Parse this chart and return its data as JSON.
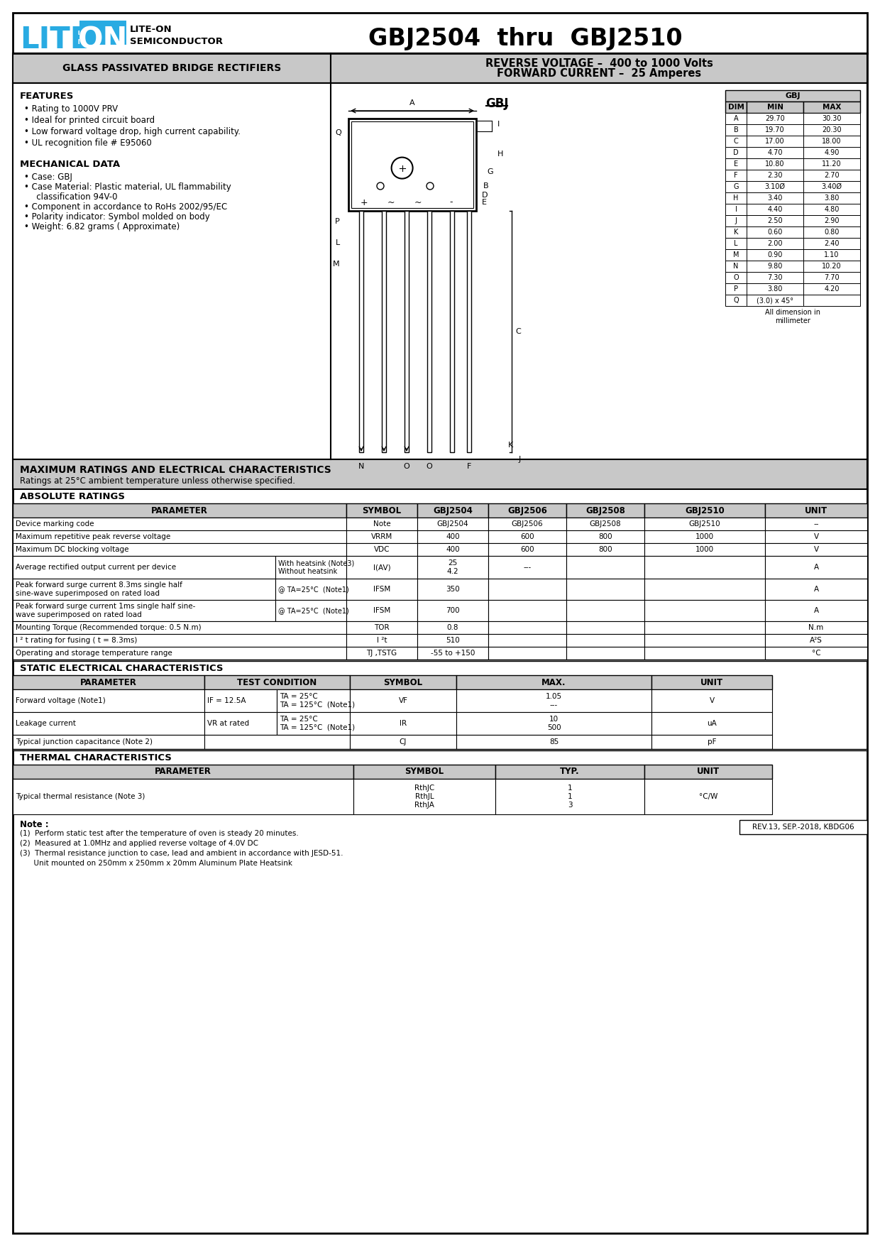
{
  "title": "GBJ2504  thru  GBJ2510",
  "company_sub1": "LITE-ON",
  "company_sub2": "SEMICONDUCTOR",
  "product_line": "GLASS PASSIVATED BRIDGE RECTIFIERS",
  "reverse_voltage": "REVERSE VOLTAGE –  400 to 1000 Volts",
  "forward_current": "FORWARD CURRENT –  25 Amperes",
  "features": [
    "Rating to 1000V PRV",
    "Ideal for printed circuit board",
    "Low forward voltage drop, high current capability.",
    "UL recognition file # E95060"
  ],
  "mech": [
    "Case: GBJ",
    "Case Material: Plastic material, UL flammability\n   classification 94V-0",
    "Component in accordance to RoHs 2002/95/EC",
    "Polarity indicator: Symbol molded on body",
    "Weight: 6.82 grams ( Approximate)"
  ],
  "dim_table_header": [
    "DIM",
    "MIN",
    "MAX"
  ],
  "dim_table_data": [
    [
      "A",
      "29.70",
      "30.30"
    ],
    [
      "B",
      "19.70",
      "20.30"
    ],
    [
      "C",
      "17.00",
      "18.00"
    ],
    [
      "D",
      "4.70",
      "4.90"
    ],
    [
      "E",
      "10.80",
      "11.20"
    ],
    [
      "F",
      "2.30",
      "2.70"
    ],
    [
      "G",
      "3.10Ø",
      "3.40Ø"
    ],
    [
      "H",
      "3.40",
      "3.80"
    ],
    [
      "I",
      "4.40",
      "4.80"
    ],
    [
      "J",
      "2.50",
      "2.90"
    ],
    [
      "K",
      "0.60",
      "0.80"
    ],
    [
      "L",
      "2.00",
      "2.40"
    ],
    [
      "M",
      "0.90",
      "1.10"
    ],
    [
      "N",
      "9.80",
      "10.20"
    ],
    [
      "O",
      "7.30",
      "7.70"
    ],
    [
      "P",
      "3.80",
      "4.20"
    ],
    [
      "Q",
      "(3.0) x 45°",
      ""
    ]
  ],
  "dim_note": "All dimension in\nmillimeter",
  "max_ratings_title": "MAXIMUM RATINGS AND ELECTRICAL CHARACTERISTICS",
  "max_ratings_note": "Ratings at 25°C ambient temperature unless otherwise specified.",
  "abs_ratings_title": "ABSOLUTE RATINGS",
  "notes": [
    "(1)  Perform static test after the temperature of oven is steady 20 minutes.",
    "(2)  Measured at 1.0MHz and applied reverse voltage of 4.0V DC",
    "(3)  Thermal resistance junction to case, lead and ambient in accordance with JESD-51.",
    "      Unit mounted on 250mm x 250mm x 20mm Aluminum Plate Heatsink"
  ],
  "rev": "REV.13, SEP.-2018, KBDG06",
  "blue_color": "#29abe2",
  "header_bg": "#c8c8c8",
  "white": "#ffffff",
  "black": "#000000"
}
